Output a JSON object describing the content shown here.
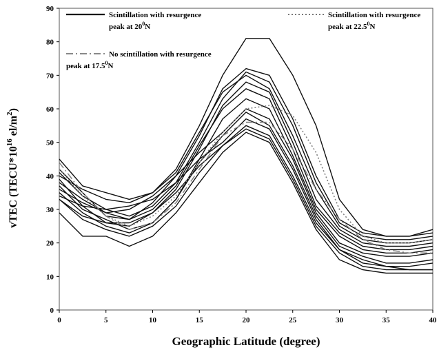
{
  "chart_data": {
    "type": "line",
    "title": "",
    "xlabel": "Geographic Latitude (degree)",
    "ylabel_main": "vTEC (TECU*10",
    "ylabel_sup": "16",
    "ylabel_rest": " el/m",
    "ylabel_sup2": "2",
    "ylabel_end": ")",
    "xlim": [
      0,
      40
    ],
    "ylim": [
      0,
      90
    ],
    "x_ticks": [
      "0",
      "5",
      "10",
      "15",
      "20",
      "25",
      "30",
      "35",
      "40"
    ],
    "y_ticks": [
      "0",
      "10",
      "20",
      "30",
      "40",
      "50",
      "60",
      "70",
      "80",
      "90"
    ],
    "grid": false,
    "legend_position": "top",
    "legend": [
      {
        "style": "solid",
        "line1": "Scintillation with resurgence",
        "line2": "peak at 20",
        "deg": "0",
        "suffix": "N"
      },
      {
        "style": "dotted",
        "line1": "Scintillation with resurgence",
        "line2": "peak at 22.5",
        "deg": "0",
        "suffix": "N"
      },
      {
        "style": "dashdot",
        "line1": "No scintillation with resurgence",
        "line2": "peak at 17.5",
        "deg": "0",
        "suffix": "N"
      }
    ],
    "x": [
      0,
      2.5,
      5,
      7.5,
      10,
      12.5,
      15,
      17.5,
      20,
      22.5,
      25,
      27.5,
      30,
      32.5,
      35,
      37.5,
      40
    ],
    "series": [
      {
        "style": "solid",
        "values": [
          45,
          37,
          35,
          33,
          35,
          42,
          55,
          70,
          81,
          81,
          70,
          55,
          33,
          24,
          22,
          22,
          23
        ]
      },
      {
        "style": "solid",
        "values": [
          42,
          35,
          28,
          27,
          32,
          40,
          52,
          66,
          72,
          70,
          57,
          40,
          27,
          23,
          22,
          22,
          24
        ]
      },
      {
        "style": "solid",
        "values": [
          41,
          34,
          30,
          28,
          31,
          38,
          50,
          63,
          71,
          68,
          55,
          38,
          26,
          22,
          21,
          21,
          22
        ]
      },
      {
        "style": "solid",
        "values": [
          40,
          36,
          33,
          32,
          35,
          41,
          53,
          65,
          70,
          66,
          52,
          36,
          25,
          21,
          20,
          20,
          21
        ]
      },
      {
        "style": "solid",
        "values": [
          39,
          31,
          26,
          25,
          29,
          36,
          48,
          61,
          68,
          65,
          50,
          33,
          24,
          20,
          19,
          19,
          20
        ]
      },
      {
        "style": "solid",
        "values": [
          38,
          33,
          29,
          27,
          30,
          37,
          49,
          60,
          66,
          63,
          48,
          31,
          23,
          19,
          18,
          18,
          19
        ]
      },
      {
        "style": "solid",
        "values": [
          37,
          30,
          27,
          24,
          26,
          33,
          45,
          57,
          63,
          60,
          46,
          30,
          22,
          18,
          17,
          17,
          18
        ]
      },
      {
        "style": "solid",
        "values": [
          36,
          32,
          29,
          30,
          34,
          40,
          47,
          53,
          60,
          57,
          45,
          29,
          20,
          17,
          16,
          16,
          17
        ]
      },
      {
        "style": "solid",
        "values": [
          35,
          29,
          25,
          23,
          26,
          33,
          44,
          52,
          59,
          55,
          43,
          28,
          19,
          16,
          14,
          14,
          15
        ]
      },
      {
        "style": "solid",
        "values": [
          34,
          31,
          30,
          31,
          33,
          38,
          45,
          50,
          57,
          54,
          42,
          27,
          18,
          15,
          13,
          13,
          14
        ]
      },
      {
        "style": "solid",
        "values": [
          33,
          27,
          24,
          22,
          25,
          31,
          41,
          49,
          55,
          52,
          40,
          26,
          18,
          14,
          13,
          12,
          12
        ]
      },
      {
        "style": "solid",
        "values": [
          33,
          28,
          26,
          26,
          29,
          35,
          43,
          49,
          54,
          51,
          39,
          25,
          17,
          13,
          12,
          12,
          12
        ]
      },
      {
        "style": "solid",
        "values": [
          29,
          22,
          22,
          19,
          22,
          29,
          38,
          47,
          53,
          50,
          38,
          24,
          15,
          12,
          11,
          11,
          11
        ]
      },
      {
        "style": "dotted",
        "values": [
          42,
          34,
          28,
          25,
          28,
          34,
          44,
          53,
          60,
          61,
          58,
          47,
          30,
          22,
          20,
          20,
          21
        ]
      },
      {
        "style": "dashdot",
        "values": [
          44,
          35,
          28,
          24,
          26,
          32,
          42,
          52,
          56,
          56,
          48,
          36,
          27,
          21,
          18,
          17,
          17
        ]
      }
    ]
  }
}
